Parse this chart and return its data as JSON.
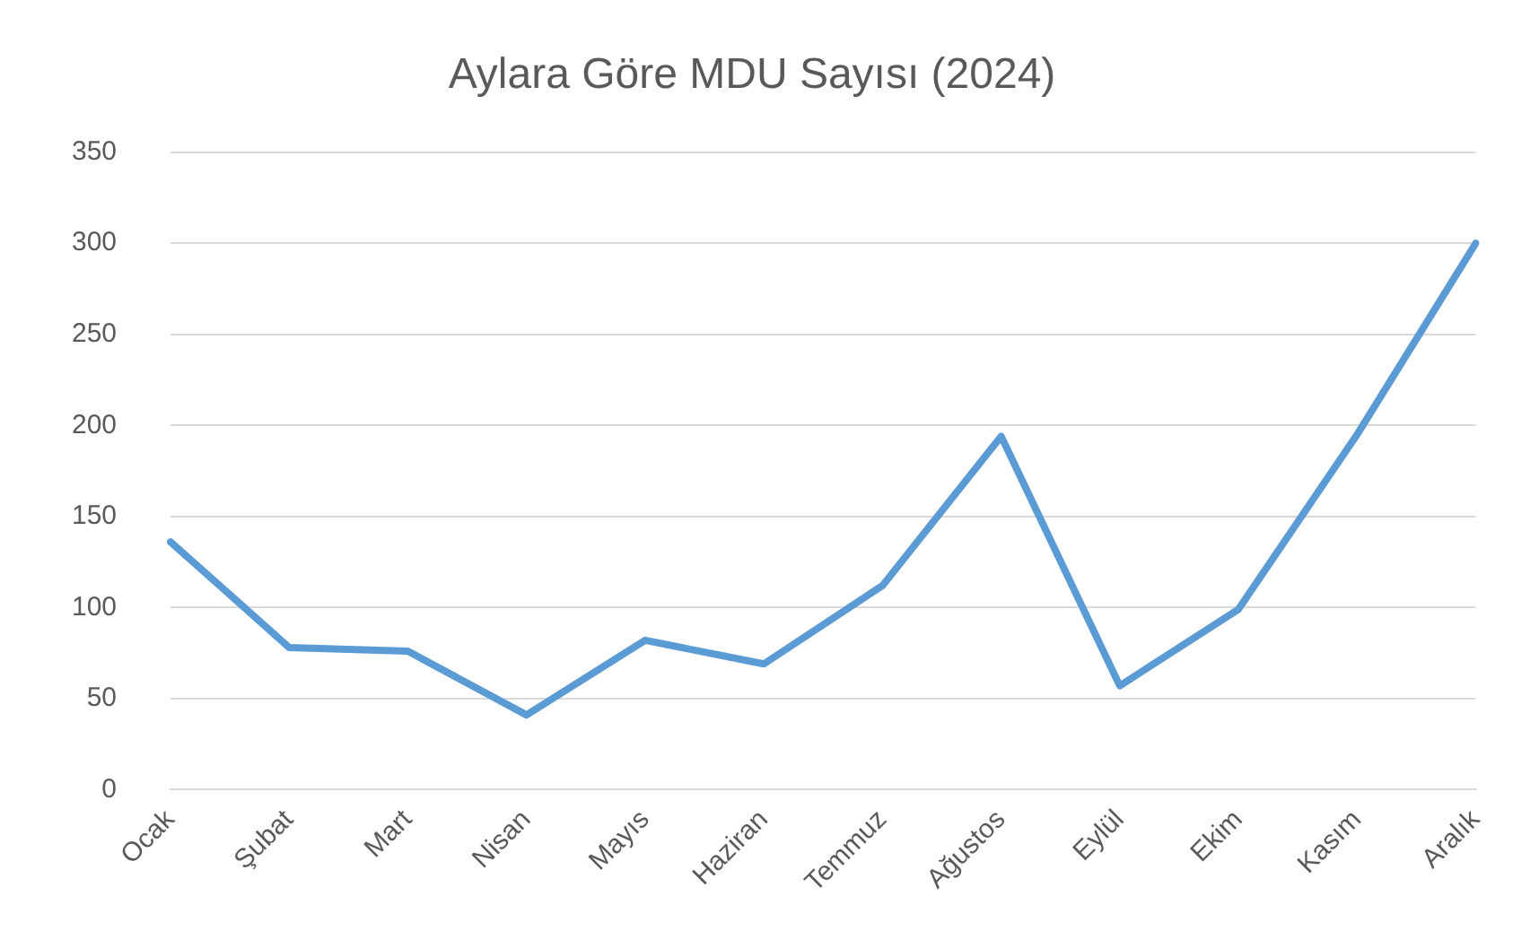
{
  "chart_data": {
    "type": "line",
    "title": "Aylara Göre MDU Sayısı (2024)",
    "categories": [
      "Ocak",
      "Şubat",
      "Mart",
      "Nisan",
      "Mayıs",
      "Haziran",
      "Temmuz",
      "Ağustos",
      "Eylül",
      "Ekim",
      "Kasım",
      "Aralık"
    ],
    "series": [
      {
        "color": "#5b9bd5",
        "values": [
          136,
          78,
          76,
          41,
          82,
          69,
          112,
          194,
          57,
          99,
          195,
          300
        ]
      }
    ],
    "ylim": [
      0,
      350
    ],
    "yticks": [
      0,
      50,
      100,
      150,
      200,
      250,
      300,
      350
    ],
    "grid": "y",
    "legend": false,
    "marker": "none",
    "line_style": "solid"
  }
}
